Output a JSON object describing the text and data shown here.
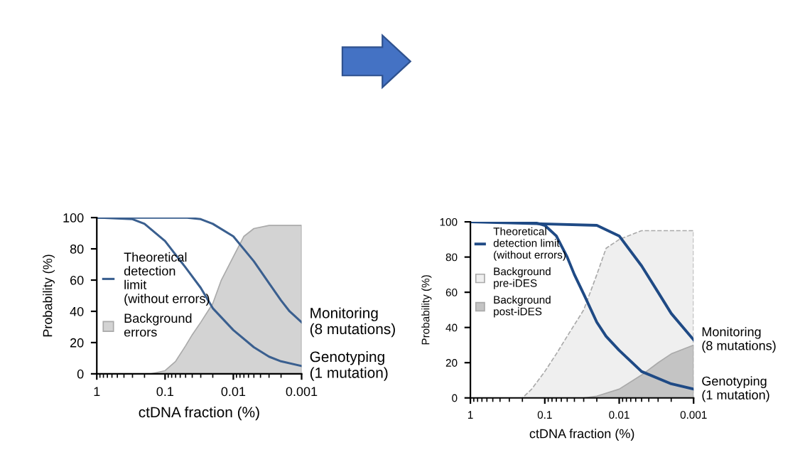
{
  "chart_data": [
    {
      "type": "area",
      "xlabel": "ctDNA fraction (%)",
      "ylabel": "Probability (%)",
      "log": "x",
      "xlim": [
        1,
        0.001
      ],
      "xticks": [
        1,
        0.1,
        0.01,
        0.001
      ],
      "ylim": [
        0,
        100
      ],
      "yticks": [
        0,
        20,
        40,
        60,
        80,
        100
      ],
      "grid": false,
      "legend": "left",
      "marker": "none",
      "series": [
        {
          "name": "Background\nerrors",
          "color": "#d3d3d3",
          "x": [
            0.16,
            0.1,
            0.07,
            0.05,
            0.04,
            0.03,
            0.02,
            0.015,
            0.01,
            0.007,
            0.005,
            0.003,
            0.001
          ],
          "values": [
            0,
            2,
            8,
            18,
            25,
            33,
            45,
            60,
            75,
            88,
            93,
            95,
            95
          ]
        },
        {
          "name": "Genotyping\n(1 mutation)",
          "type": "line",
          "color": "#3a5f8f",
          "x": [
            1,
            0.3,
            0.2,
            0.1,
            0.05,
            0.03,
            0.02,
            0.01,
            0.005,
            0.003,
            0.002,
            0.001
          ],
          "values": [
            100,
            99,
            96,
            85,
            68,
            55,
            42,
            28,
            17,
            11,
            8,
            5
          ]
        },
        {
          "name": "Monitoring\n(8 mutations)",
          "type": "line",
          "color": "#3a5f8f",
          "x": [
            1,
            0.05,
            0.03,
            0.02,
            0.01,
            0.005,
            0.003,
            0.002,
            0.0015,
            0.001
          ],
          "values": [
            100,
            100,
            99,
            96,
            88,
            72,
            58,
            47,
            40,
            33
          ]
        }
      ],
      "annotations": [
        "Theoretical\ndetection\nlimit\n(without errors)"
      ]
    },
    {
      "type": "area",
      "xlabel": "ctDNA fraction (%)",
      "ylabel": "Probability (%)",
      "log": "x",
      "xlim": [
        1,
        0.001
      ],
      "xticks": [
        1,
        0.1,
        0.01,
        0.001
      ],
      "ylim": [
        0,
        100
      ],
      "yticks": [
        0,
        20,
        40,
        60,
        80,
        100
      ],
      "grid": false,
      "legend": "upper left",
      "marker": "none",
      "series": [
        {
          "name": "Background\npre-iDES",
          "color": "#efefef",
          "line_style": "dashed",
          "x": [
            0.2,
            0.15,
            0.1,
            0.07,
            0.05,
            0.03,
            0.02,
            0.015,
            0.01,
            0.005,
            0.001
          ],
          "values": [
            0,
            5,
            15,
            25,
            35,
            50,
            70,
            85,
            90,
            95,
            95
          ]
        },
        {
          "name": "Background\npost-iDES",
          "color": "#c4c4c4",
          "x": [
            0.03,
            0.02,
            0.01,
            0.005,
            0.003,
            0.002,
            0.001
          ],
          "values": [
            0,
            1,
            5,
            13,
            20,
            25,
            30
          ]
        },
        {
          "name": "Genotyping\n(1 mutation)",
          "type": "line",
          "color": "#1f4a85",
          "x": [
            1,
            0.15,
            0.1,
            0.07,
            0.05,
            0.04,
            0.03,
            0.02,
            0.015,
            0.01,
            0.005,
            0.002,
            0.001
          ],
          "values": [
            100,
            100,
            98,
            92,
            80,
            70,
            59,
            43,
            35,
            27,
            15,
            8,
            5
          ]
        },
        {
          "name": "Monitoring\n(8 mutations)",
          "type": "line",
          "color": "#1f4a85",
          "x": [
            1,
            0.02,
            0.01,
            0.005,
            0.003,
            0.002,
            0.001
          ],
          "values": [
            100,
            98,
            92,
            75,
            60,
            48,
            33
          ]
        }
      ],
      "annotations": [
        "Theoretical\ndetection limit\n(without errors)"
      ]
    }
  ]
}
